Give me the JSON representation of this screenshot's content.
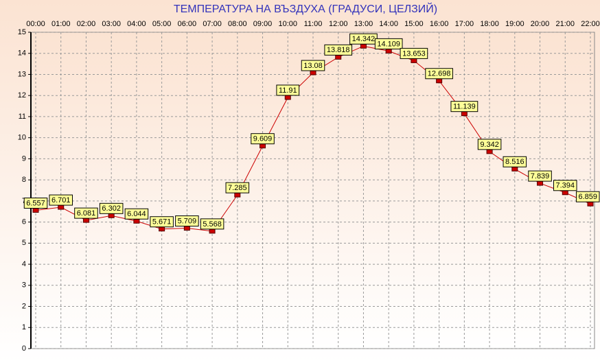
{
  "chart_data": {
    "type": "line",
    "title": "ТЕМПЕРАТУРА НА ВЪЗДУХА  (ГРАДУСИ, ЦЕЛЗИЙ)",
    "categories": [
      "00:00",
      "01:00",
      "02:00",
      "03:00",
      "04:00",
      "05:00",
      "06:00",
      "07:00",
      "08:00",
      "09:00",
      "10:00",
      "11:00",
      "12:00",
      "13:00",
      "14:00",
      "15:00",
      "16:00",
      "17:00",
      "18:00",
      "19:00",
      "20:00",
      "21:00",
      "22:00"
    ],
    "series": [
      {
        "color": "#cc0000",
        "values": [
          6.557,
          6.701,
          6.081,
          6.302,
          6.044,
          5.671,
          5.709,
          5.568,
          7.285,
          9.609,
          11.91,
          13.08,
          13.818,
          14.342,
          14.109,
          13.653,
          12.698,
          11.139,
          9.342,
          8.516,
          7.839,
          7.394,
          6.859
        ]
      }
    ],
    "ylim": [
      0,
      15
    ],
    "yticks": [
      0,
      1,
      2,
      3,
      4,
      5,
      6,
      7,
      8,
      9,
      10,
      11,
      12,
      13,
      14,
      15
    ],
    "grid": true
  }
}
